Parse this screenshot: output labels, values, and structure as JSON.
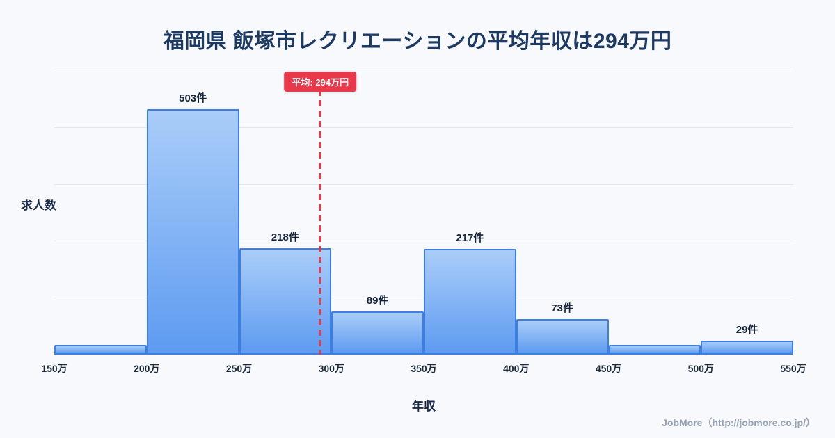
{
  "page": {
    "title": "福岡県 飯塚市レクリエーションの平均年収は294万円",
    "footer": "JobMore（http://jobmore.co.jp/）"
  },
  "chart_data": {
    "type": "bar",
    "title": "福岡県 飯塚市レクリエーションの平均年収は294万円",
    "xlabel": "年収",
    "ylabel": "求人数",
    "x_ticks": [
      "150万",
      "200万",
      "250万",
      "300万",
      "350万",
      "400万",
      "450万",
      "500万",
      "550万"
    ],
    "x_range": [
      150,
      550
    ],
    "ylim": [
      0,
      580
    ],
    "grid": true,
    "legend": "none",
    "bins": [
      {
        "x0": 150,
        "x1": 200,
        "value": 20,
        "label": ""
      },
      {
        "x0": 200,
        "x1": 250,
        "value": 503,
        "label": "503件"
      },
      {
        "x0": 250,
        "x1": 300,
        "value": 218,
        "label": "218件"
      },
      {
        "x0": 300,
        "x1": 350,
        "value": 89,
        "label": "89件"
      },
      {
        "x0": 350,
        "x1": 400,
        "value": 217,
        "label": "217件"
      },
      {
        "x0": 400,
        "x1": 450,
        "value": 73,
        "label": "73件"
      },
      {
        "x0": 450,
        "x1": 500,
        "value": 20,
        "label": ""
      },
      {
        "x0": 500,
        "x1": 550,
        "value": 29,
        "label": "29件"
      }
    ],
    "average_line": {
      "value": 294,
      "label": "平均: 294万円",
      "style": "dashed"
    },
    "colors": {
      "bar_fill_top": "#aacdf9",
      "bar_fill_bottom": "#5d9bf0",
      "bar_border": "#3c7ee2",
      "average_line": "#e8394a",
      "badge_bg": "#e8394a",
      "badge_text": "#ffffff",
      "title_text": "#1d3a63",
      "grid_line": "#e2e8f1",
      "background": "#f7f9fd"
    }
  }
}
